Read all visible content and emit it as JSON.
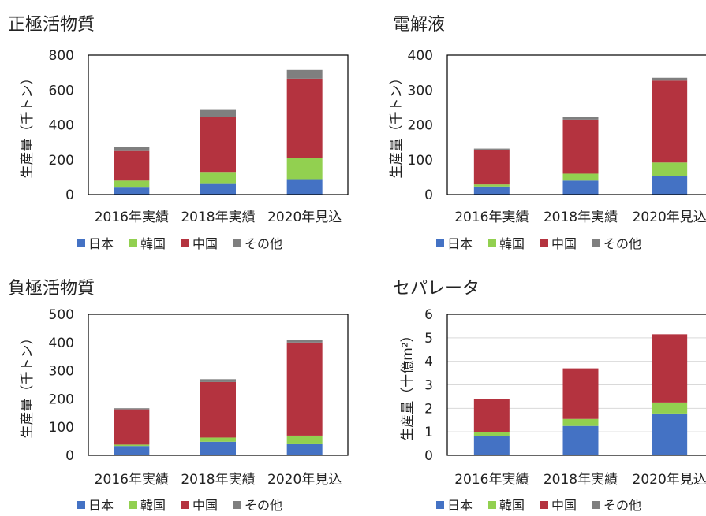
{
  "legend": {
    "items": [
      {
        "label": "日本",
        "color": "#4472C4"
      },
      {
        "label": "韓国",
        "color": "#92D050"
      },
      {
        "label": "中国",
        "color": "#B4333F"
      },
      {
        "label": "その他",
        "color": "#7F7F7F"
      }
    ]
  },
  "chart_data": [
    {
      "type": "bar",
      "stacked": true,
      "title": "正極活物質",
      "ylabel": "生産量（千トン）",
      "ylim": [
        0,
        800
      ],
      "yticks": [
        0,
        200,
        400,
        600,
        800
      ],
      "categories": [
        "2016年実績",
        "2018年実績",
        "2020年見込"
      ],
      "series": [
        {
          "name": "日本",
          "values": [
            40,
            65,
            88
          ]
        },
        {
          "name": "韓国",
          "values": [
            40,
            65,
            120
          ]
        },
        {
          "name": "中国",
          "values": [
            170,
            315,
            457
          ]
        },
        {
          "name": "その他",
          "values": [
            25,
            45,
            50
          ]
        }
      ],
      "legend_position": "bottom",
      "grid": false
    },
    {
      "type": "bar",
      "stacked": true,
      "title": "電解液",
      "ylabel": "生産量（千トン）",
      "ylim": [
        0,
        400
      ],
      "yticks": [
        0,
        100,
        200,
        300,
        400
      ],
      "categories": [
        "2016年実績",
        "2018年実績",
        "2020年見込"
      ],
      "series": [
        {
          "name": "日本",
          "values": [
            23,
            40,
            52
          ]
        },
        {
          "name": "韓国",
          "values": [
            6,
            20,
            40
          ]
        },
        {
          "name": "中国",
          "values": [
            100,
            155,
            235
          ]
        },
        {
          "name": "その他",
          "values": [
            3,
            7,
            8
          ]
        }
      ],
      "legend_position": "bottom",
      "grid": false
    },
    {
      "type": "bar",
      "stacked": true,
      "title": "負極活物質",
      "ylabel": "生産量（千トン）",
      "ylim": [
        0,
        500
      ],
      "yticks": [
        0,
        100,
        200,
        300,
        400,
        500
      ],
      "categories": [
        "2016年実績",
        "2018年実績",
        "2020年見込"
      ],
      "series": [
        {
          "name": "日本",
          "values": [
            33,
            48,
            42
          ]
        },
        {
          "name": "韓国",
          "values": [
            5,
            15,
            28
          ]
        },
        {
          "name": "中国",
          "values": [
            125,
            197,
            330
          ]
        },
        {
          "name": "その他",
          "values": [
            4,
            10,
            10
          ]
        }
      ],
      "legend_position": "bottom",
      "grid": false
    },
    {
      "type": "bar",
      "stacked": true,
      "title": "セパレータ",
      "ylabel": "生産量（十億m²）",
      "ylim": [
        0,
        6
      ],
      "yticks": [
        0,
        1,
        2,
        3,
        4,
        5,
        6
      ],
      "categories": [
        "2016年実績",
        "2018年実績",
        "2020年見込"
      ],
      "series": [
        {
          "name": "日本",
          "values": [
            0.82,
            1.25,
            1.78
          ]
        },
        {
          "name": "韓国",
          "values": [
            0.18,
            0.3,
            0.47
          ]
        },
        {
          "name": "中国",
          "values": [
            1.4,
            2.15,
            2.9
          ]
        },
        {
          "name": "その他",
          "values": [
            0,
            0,
            0
          ]
        }
      ],
      "legend_position": "bottom",
      "grid": true
    }
  ]
}
